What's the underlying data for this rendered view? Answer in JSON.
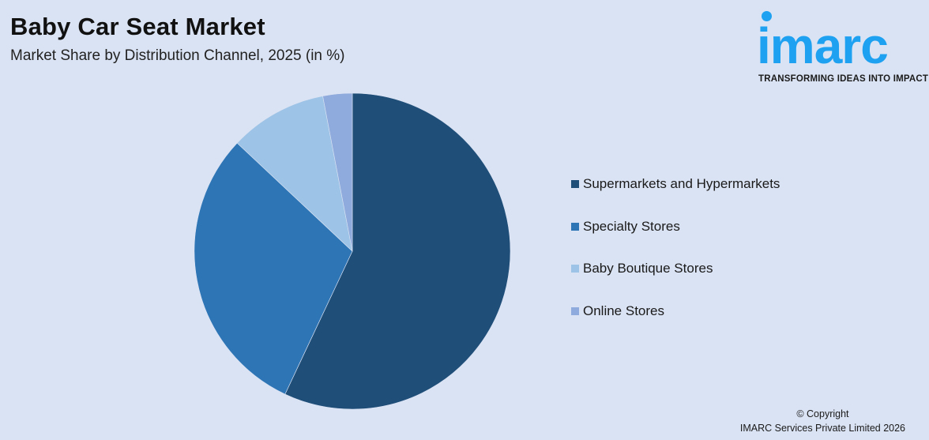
{
  "header": {
    "title": "Baby Car Seat Market",
    "subtitle": "Market Share by Distribution Channel, 2025 (in %)"
  },
  "logo": {
    "wordmark": "imarc",
    "tagline": "TRANSFORMING IDEAS INTO IMPACT",
    "color": "#1ea1f1"
  },
  "legend": {
    "items": [
      {
        "label": "Supermarkets and Hypermarkets",
        "color": "#1f4e79"
      },
      {
        "label": "Specialty Stores",
        "color": "#2e75b6"
      },
      {
        "label": "Baby Boutique Stores",
        "color": "#9dc3e6"
      },
      {
        "label": "Online Stores",
        "color": "#8faadc"
      }
    ]
  },
  "footer": {
    "copyright": "© Copyright",
    "company": "IMARC Services Private Limited 2026"
  },
  "chart_data": {
    "type": "pie",
    "title": "Baby Car Seat Market",
    "subtitle": "Market Share by Distribution Channel, 2025 (in %)",
    "categories": [
      "Supermarkets and Hypermarkets",
      "Specialty Stores",
      "Baby Boutique Stores",
      "Online Stores"
    ],
    "values": [
      57,
      30,
      10,
      3
    ],
    "colors": [
      "#1f4e79",
      "#2e75b6",
      "#9dc3e6",
      "#8faadc"
    ],
    "start_angle": "12 o'clock",
    "direction": "clockwise",
    "legend_position": "right",
    "data_labels": false
  }
}
